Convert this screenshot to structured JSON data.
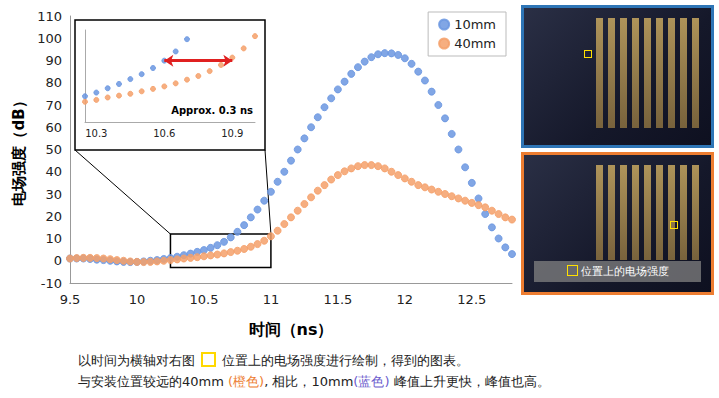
{
  "chart_data": {
    "type": "scatter",
    "x_label": "时间（ns）",
    "y_label": "电场强度（dB）",
    "xlim": [
      9.5,
      12.8
    ],
    "xticks": [
      9.5,
      10,
      10.5,
      11,
      11.5,
      12,
      12.5
    ],
    "ylim": [
      -10,
      110
    ],
    "yticks": [
      -10,
      0,
      10,
      20,
      30,
      40,
      50,
      60,
      70,
      80,
      90,
      100,
      110
    ],
    "grid": false,
    "legend": "top-right",
    "marker": "circle",
    "x": [
      9.5,
      9.55,
      9.6,
      9.65,
      9.7,
      9.75,
      9.8,
      9.85,
      9.9,
      9.95,
      10,
      10.05,
      10.1,
      10.15,
      10.2,
      10.25,
      10.3,
      10.35,
      10.4,
      10.45,
      10.5,
      10.55,
      10.6,
      10.65,
      10.7,
      10.75,
      10.8,
      10.85,
      10.9,
      10.95,
      11,
      11.05,
      11.1,
      11.15,
      11.2,
      11.25,
      11.3,
      11.35,
      11.4,
      11.45,
      11.5,
      11.55,
      11.6,
      11.65,
      11.7,
      11.75,
      11.8,
      11.85,
      11.9,
      11.95,
      12,
      12.05,
      12.1,
      12.15,
      12.2,
      12.25,
      12.3,
      12.35,
      12.4,
      12.45,
      12.5,
      12.55,
      12.6,
      12.65,
      12.7,
      12.75,
      12.8
    ],
    "series": [
      {
        "name": "10mm",
        "color": "#6b96e0",
        "values": [
          1,
          1,
          1,
          0.8,
          0.5,
          0.3,
          0,
          -0.3,
          -0.5,
          -0.6,
          -0.5,
          -0.3,
          0,
          0.3,
          0.8,
          1.2,
          1.8,
          2.5,
          3.2,
          4,
          4.8,
          5.8,
          7,
          8.5,
          10.5,
          13,
          16,
          19.5,
          23,
          27,
          31,
          35.5,
          40,
          45,
          50,
          55,
          60,
          64.5,
          69,
          73,
          77,
          80.5,
          84,
          87,
          89.5,
          91.5,
          92.8,
          93.3,
          93.2,
          92.5,
          91,
          88.5,
          85,
          81,
          76,
          70,
          64,
          57,
          50,
          42,
          35,
          28,
          21,
          15,
          10,
          6,
          3
        ]
      },
      {
        "name": "40mm",
        "color": "#f4a06a",
        "values": [
          1,
          1.2,
          1.3,
          1.3,
          1.2,
          1,
          0.7,
          0.3,
          0,
          -0.3,
          -0.5,
          -0.6,
          -0.5,
          -0.3,
          0,
          0.3,
          0.6,
          1,
          1.3,
          1.6,
          2,
          2.4,
          2.8,
          3.3,
          3.9,
          4.5,
          5.3,
          6.3,
          7.5,
          9,
          11,
          13.5,
          16.5,
          19.5,
          22.5,
          25.5,
          28.5,
          31.5,
          34,
          36.5,
          38.5,
          40.2,
          41.5,
          42.5,
          43,
          43,
          42.5,
          41.5,
          40,
          38.5,
          37,
          35.5,
          34,
          33,
          32,
          31,
          30,
          29,
          28,
          27,
          26,
          25,
          24,
          22.5,
          21,
          19.5,
          18.5
        ]
      }
    ],
    "inset": {
      "xlim": [
        10.25,
        11.0
      ],
      "ylim": [
        -3,
        12
      ],
      "xticks": [
        10.3,
        10.6,
        10.9
      ],
      "tick_labels": "x",
      "annotation": "Approx. 0.3 ns",
      "arrow": {
        "from": 10.6,
        "to": 10.9,
        "y": 7,
        "color": "#e02020"
      }
    }
  },
  "panels": [
    {
      "color": "#2e75b6"
    },
    {
      "color": "#ed7d31",
      "label": "位置上的电场强度"
    }
  ],
  "caption": [
    [
      {
        "text": "以时间为横轴对右图"
      },
      {
        "marker": "square",
        "color": "#ffd800"
      },
      {
        "text": "位置上的电场强度进行绘制，得到的图表。"
      }
    ],
    [
      {
        "text": "与安装位置较远的40mm "
      },
      {
        "text": "(橙色)",
        "color": "#ed7d31"
      },
      {
        "text": ", 相比，10mm"
      },
      {
        "text": "(蓝色)",
        "color": "#6a5acd"
      },
      {
        "text": " 峰值上升更快，峰值也高。"
      }
    ]
  ]
}
